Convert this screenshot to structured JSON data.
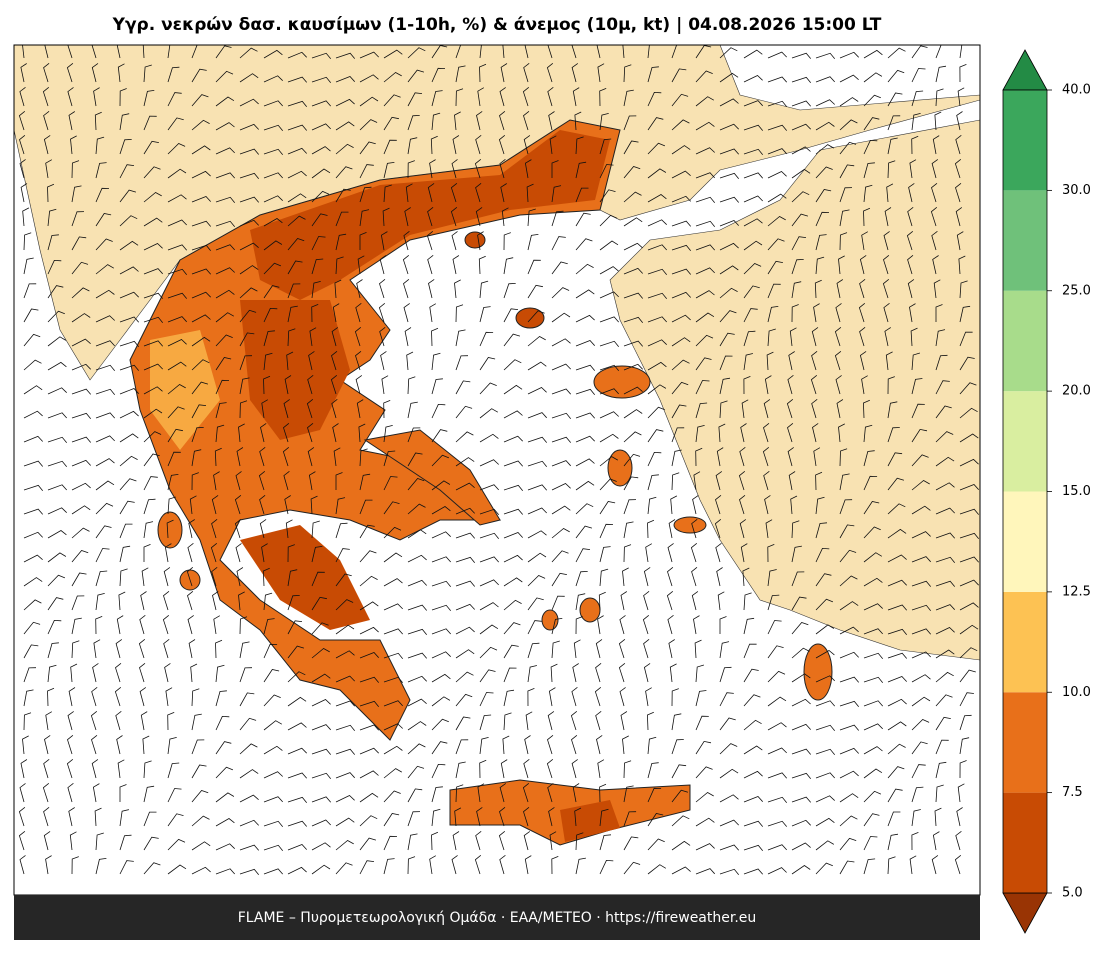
{
  "header": {
    "title": "Υγρ. νεκρών δασ. καυσίμων (1-10h, %) & άνεμος (10μ, kt)  |  04.08.2026 15:00 LT"
  },
  "footer": {
    "text": "FLAME – Πυρομετεωρολογική Ομάδα · ΕΑΑ/METEO · https://fireweather.eu"
  },
  "colorbar": {
    "levels": [
      {
        "value": 5,
        "label": "5.0"
      },
      {
        "value": 7.5,
        "label": "7.5"
      },
      {
        "value": 10,
        "label": "10.0"
      },
      {
        "value": 12.5,
        "label": "12.5"
      },
      {
        "value": 15,
        "label": "15.0"
      },
      {
        "value": 20,
        "label": "20.0"
      },
      {
        "value": 25,
        "label": "25.0"
      },
      {
        "value": 30,
        "label": "30.0"
      },
      {
        "value": 40,
        "label": "40.0"
      }
    ],
    "colors": [
      "#c84b04",
      "#e8701a",
      "#fdc253",
      "#fff6bb",
      "#d9eea0",
      "#a8dc8b",
      "#6fc17a",
      "#3ba75c"
    ],
    "under_color": "#993404",
    "over_color": "#238b45"
  }
}
